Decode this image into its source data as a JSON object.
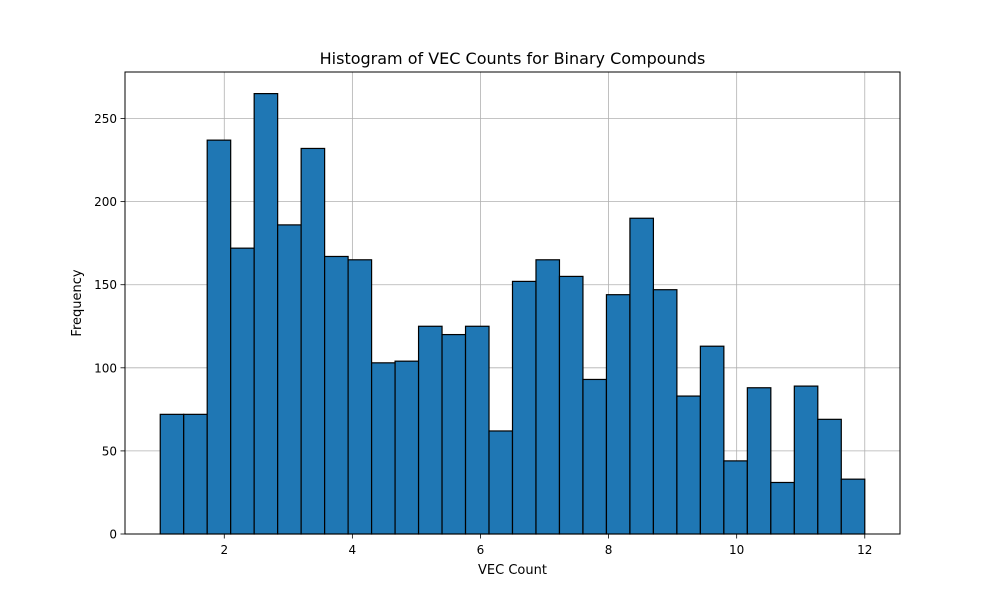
{
  "chart_data": {
    "type": "bar",
    "subtype": "histogram",
    "title": "Histogram of VEC Counts for Binary Compounds",
    "xlabel": "VEC Count",
    "ylabel": "Frequency",
    "xlim": [
      0.45,
      12.55
    ],
    "ylim": [
      0,
      278
    ],
    "xticks": [
      2,
      4,
      6,
      8,
      10,
      12
    ],
    "yticks": [
      0,
      50,
      100,
      150,
      200,
      250
    ],
    "grid": true,
    "bin_range": [
      1,
      12
    ],
    "bin_count": 30,
    "values": [
      72,
      72,
      237,
      172,
      265,
      186,
      232,
      167,
      165,
      103,
      104,
      125,
      120,
      125,
      62,
      152,
      165,
      155,
      93,
      144,
      190,
      147,
      83,
      113,
      44,
      88,
      31,
      89,
      69,
      33
    ],
    "bar_color": "#1f77b4",
    "edge_color": "#000000",
    "grid_color": "#b0b0b0"
  }
}
